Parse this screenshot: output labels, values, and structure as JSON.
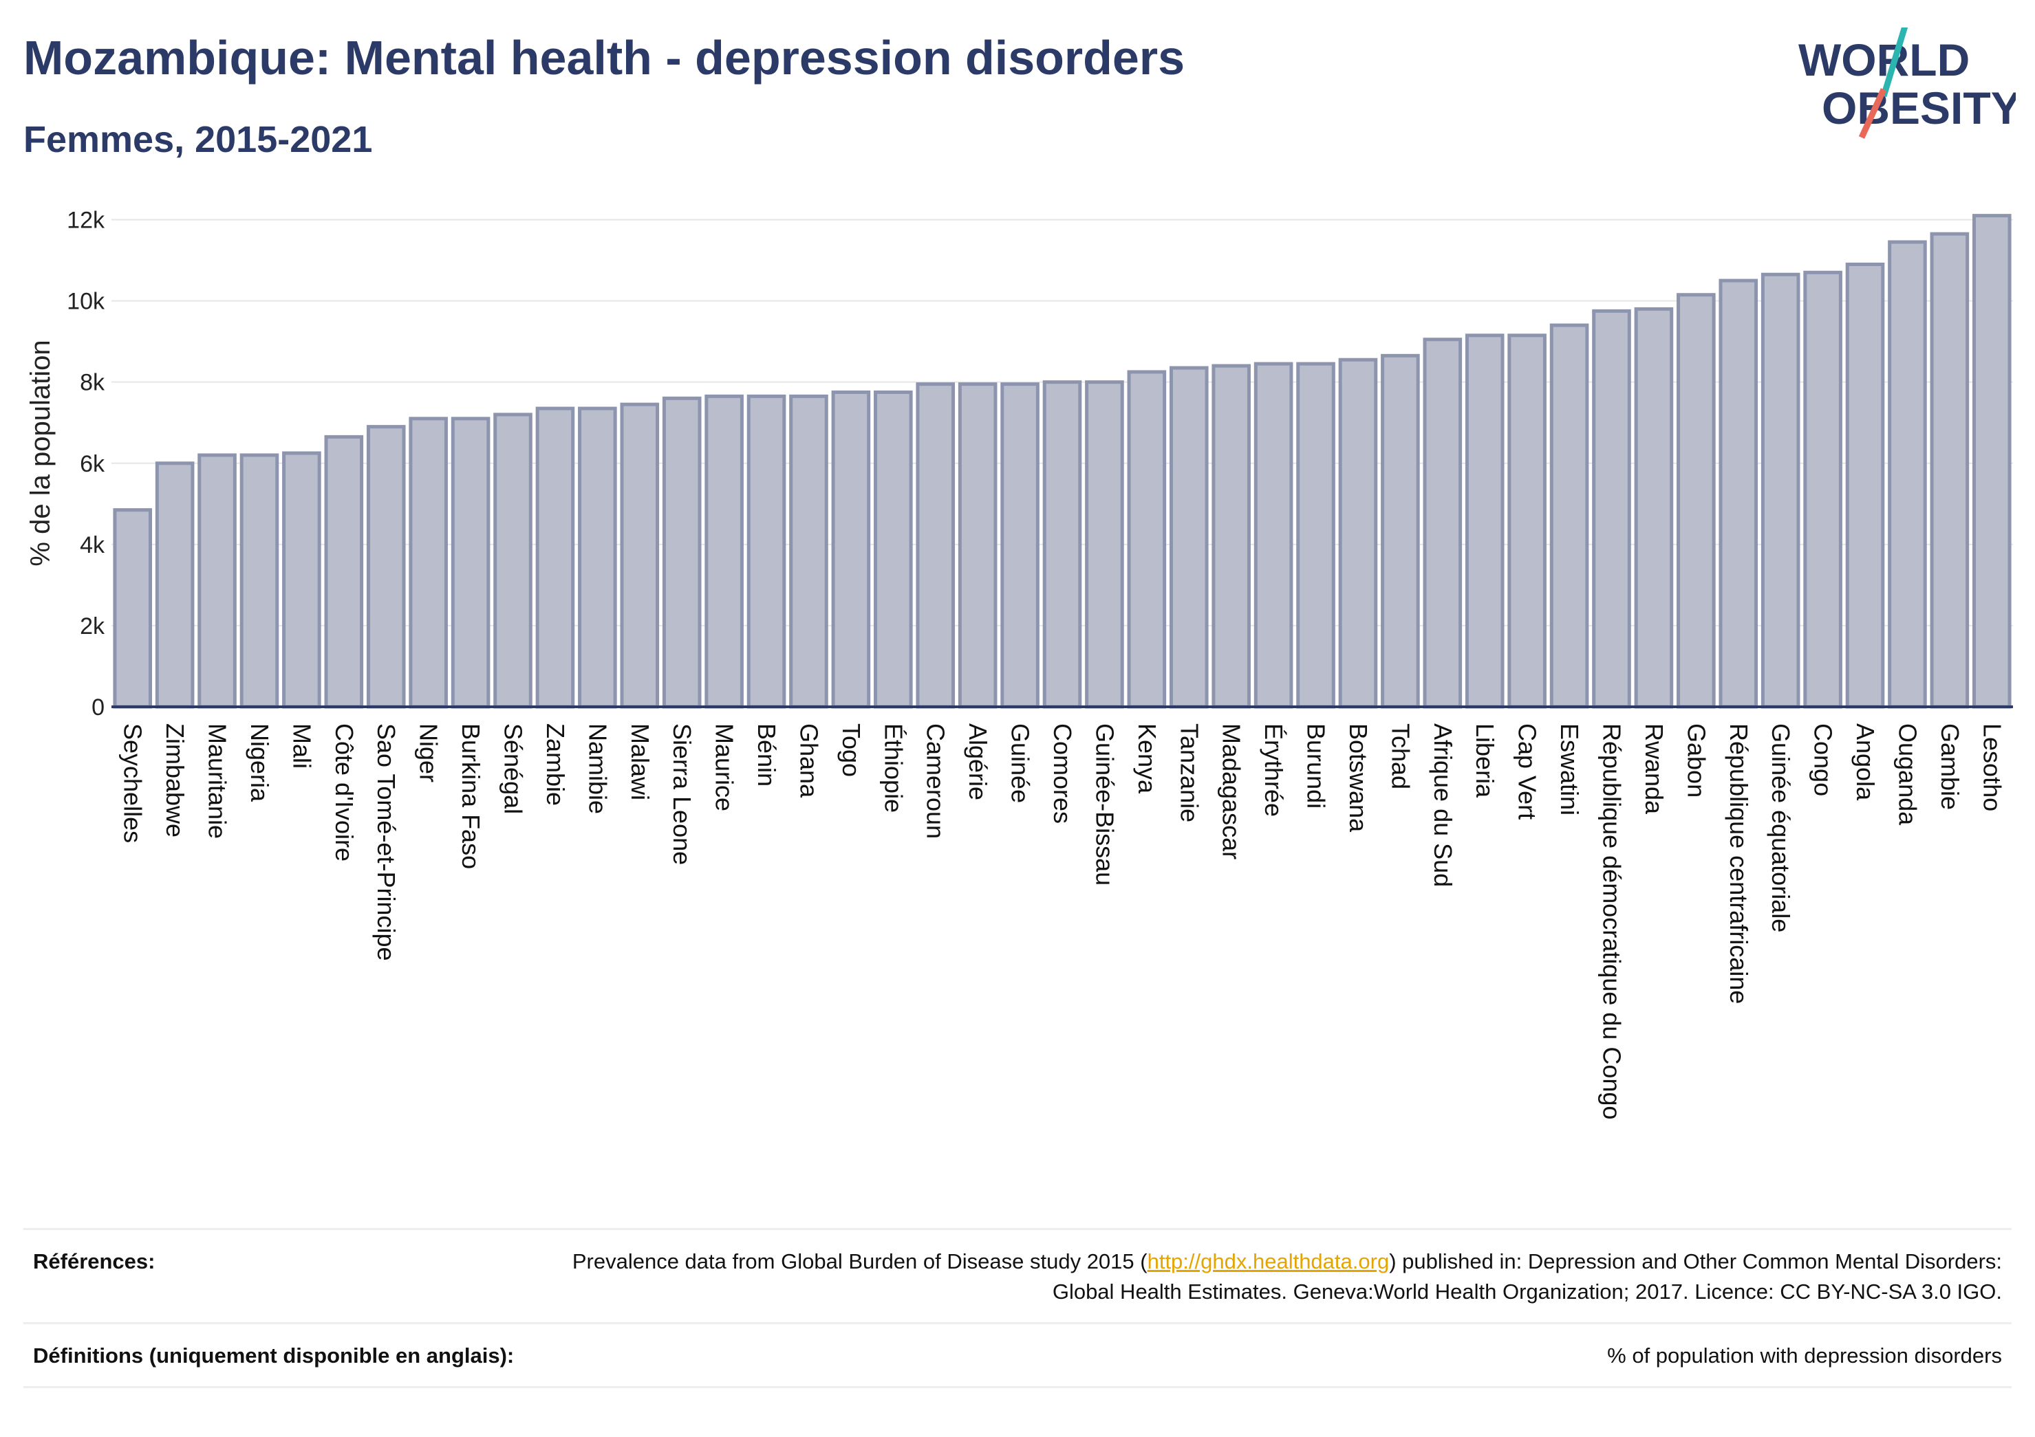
{
  "header": {
    "title": "Mozambique: Mental health - depression disorders",
    "subtitle": "Femmes, 2015-2021"
  },
  "logo": {
    "line1": "WORLD",
    "line2": "OBESITY",
    "accent_colors": [
      "#2cb5b0",
      "#e8685a"
    ]
  },
  "chart_data": {
    "type": "bar",
    "title": "",
    "xlabel": "",
    "ylabel": "% de la population",
    "ylim": [
      0,
      12500
    ],
    "yticks": [
      0,
      2000,
      4000,
      6000,
      8000,
      10000,
      12000
    ],
    "ytick_labels": [
      "0",
      "2k",
      "4k",
      "6k",
      "8k",
      "10k",
      "12k"
    ],
    "grid": true,
    "bar_color": "#b9bdcc",
    "bar_edge_color": "#8d94ad",
    "categories": [
      "Seychelles",
      "Zimbabwe",
      "Mauritanie",
      "Nigeria",
      "Mali",
      "Côte d'Ivoire",
      "Sao Tomé-et-Principe",
      "Niger",
      "Burkina Faso",
      "Sénégal",
      "Zambie",
      "Namibie",
      "Malawi",
      "Sierra Leone",
      "Maurice",
      "Bénin",
      "Ghana",
      "Togo",
      "Éthiopie",
      "Cameroun",
      "Algérie",
      "Guinée",
      "Comores",
      "Guinée-Bissau",
      "Kenya",
      "Tanzanie",
      "Madagascar",
      "Érythrée",
      "Burundi",
      "Botswana",
      "Tchad",
      "Afrique du Sud",
      "Liberia",
      "Cap Vert",
      "Eswatini",
      "République démocratique du Congo",
      "Rwanda",
      "Gabon",
      "République centrafricaine",
      "Guinée équatoriale",
      "Congo",
      "Angola",
      "Ouganda",
      "Gambie",
      "Lesotho"
    ],
    "values": [
      4850,
      6000,
      6200,
      6200,
      6250,
      6650,
      6900,
      7100,
      7100,
      7200,
      7350,
      7350,
      7450,
      7600,
      7650,
      7650,
      7650,
      7750,
      7750,
      7950,
      7950,
      7950,
      8000,
      8000,
      8250,
      8350,
      8400,
      8450,
      8450,
      8550,
      8650,
      9050,
      9150,
      9150,
      9400,
      9750,
      9800,
      10150,
      10500,
      10650,
      10700,
      10900,
      11450,
      11650,
      12100
    ]
  },
  "references": {
    "label": "Références:",
    "text_before": "Prevalence data from Global Burden of Disease study 2015 (",
    "link": "http://ghdx.healthdata.org",
    "text_after": ") published in: Depression and Other Common Mental Disorders: Global Health Estimates. Geneva:World Health Organization; 2017. Licence: CC BY-NC-SA 3.0 IGO."
  },
  "definitions": {
    "label": "Définitions (uniquement disponible en anglais):",
    "text": "% of population with depression disorders"
  }
}
